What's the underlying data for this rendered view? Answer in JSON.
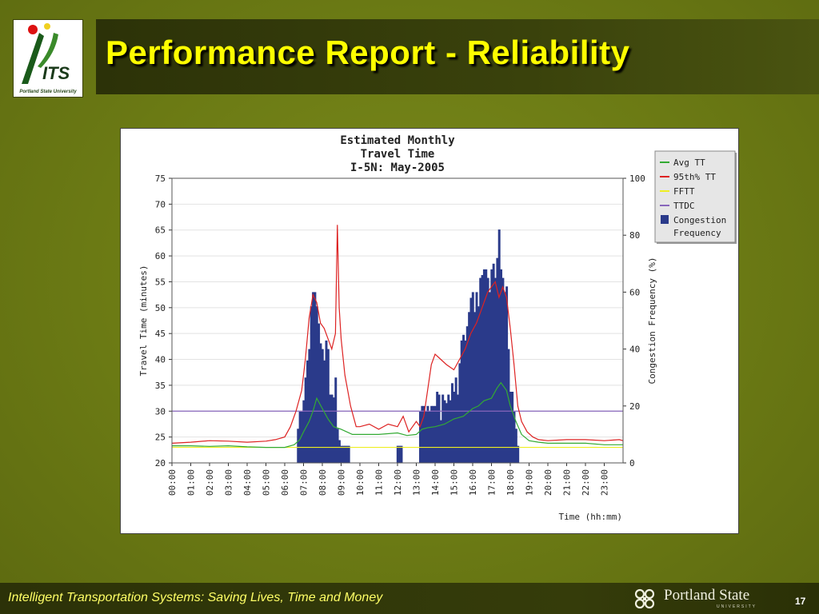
{
  "slide": {
    "title": "Performance Report - Reliability",
    "footer": "Intelligent Transportation Systems: Saving Lives, Time and Money",
    "page_number": "17",
    "logo_left": {
      "text": "ITS",
      "caption": "Portland State University"
    },
    "logo_right": {
      "name": "Portland State",
      "sub": "UNIVERSITY"
    }
  },
  "colors": {
    "background": "#6b7a14",
    "title": "#ffff00",
    "footer_text": "#ffff66",
    "avg_tt": "#33aa33",
    "p95_tt": "#dd2222",
    "fftt": "#eeee22",
    "ttdc": "#8866bb",
    "congestion": "#2a3a8a"
  },
  "chart_data": {
    "type": "bar+line",
    "title_lines": [
      "Estimated Monthly",
      "Travel Time",
      "I-5N: May-2005"
    ],
    "xlabel": "Time (hh:mm)",
    "ylabel": "Travel Time (minutes)",
    "y2label": "Congestion Frequency (%)",
    "ylim": [
      20,
      75
    ],
    "y2lim": [
      0,
      100
    ],
    "yticks": [
      "20",
      "25",
      "30",
      "35",
      "40",
      "45",
      "50",
      "55",
      "60",
      "65",
      "70",
      "75"
    ],
    "y2ticks": [
      "0",
      "20",
      "40",
      "60",
      "80",
      "100"
    ],
    "xticks": [
      "00:00",
      "01:00",
      "02:00",
      "03:00",
      "04:00",
      "05:00",
      "06:00",
      "07:00",
      "08:00",
      "09:00",
      "10:00",
      "11:00",
      "12:00",
      "13:00",
      "14:00",
      "15:00",
      "16:00",
      "17:00",
      "18:00",
      "19:00",
      "20:00",
      "21:00",
      "22:00",
      "23:00"
    ],
    "xlim": [
      0,
      24
    ],
    "grid": "horizontal",
    "legend_position": "top-right",
    "legend": [
      "Avg TT",
      "95th% TT",
      "FFTT",
      "TTDC",
      "Congestion",
      "Frequency"
    ],
    "fftt": 23,
    "ttdc": 30,
    "series": [
      {
        "name": "Avg TT",
        "x": [
          0,
          1,
          2,
          3,
          4,
          5,
          6,
          6.5,
          6.8,
          7,
          7.3,
          7.5,
          7.7,
          8,
          8.3,
          8.6,
          9,
          9.3,
          9.6,
          10,
          11,
          12,
          12.5,
          13,
          13.3,
          13.6,
          14,
          14.5,
          15,
          15.5,
          16,
          16.3,
          16.6,
          17,
          17.3,
          17.5,
          17.8,
          18,
          18.3,
          18.6,
          19,
          19.5,
          20,
          21,
          22,
          23,
          24
        ],
        "y": [
          23.3,
          23.3,
          23.2,
          23.3,
          23.1,
          23,
          23,
          23.5,
          24.5,
          26,
          28,
          30,
          32.5,
          30.5,
          28.5,
          27,
          26.5,
          26,
          25.5,
          25.5,
          25.5,
          25.8,
          25.3,
          25.5,
          26.5,
          26.8,
          27,
          27.5,
          28.5,
          29,
          30.5,
          31,
          32,
          32.5,
          34.5,
          35.5,
          34,
          31,
          28,
          25.5,
          24.3,
          24,
          23.8,
          23.8,
          23.8,
          23.5,
          23.5
        ]
      },
      {
        "name": "95th% TT",
        "x": [
          0,
          1,
          2,
          3,
          4,
          5,
          5.5,
          6,
          6.3,
          6.6,
          6.9,
          7.1,
          7.3,
          7.5,
          7.7,
          7.9,
          8.1,
          8.3,
          8.5,
          8.7,
          8.8,
          8.9,
          9,
          9.2,
          9.5,
          9.8,
          10,
          10.5,
          11,
          11.5,
          12,
          12.3,
          12.6,
          13,
          13.2,
          13.4,
          13.6,
          13.8,
          14,
          14.3,
          14.6,
          15,
          15.3,
          15.6,
          15.9,
          16.2,
          16.5,
          16.8,
          17,
          17.2,
          17.4,
          17.6,
          17.8,
          18,
          18.2,
          18.4,
          18.6,
          18.9,
          19.2,
          19.5,
          20,
          21,
          22,
          23,
          23.8,
          24
        ],
        "y": [
          23.8,
          24,
          24.3,
          24.2,
          24,
          24.2,
          24.5,
          25,
          27,
          30,
          34,
          40,
          48,
          52.5,
          51,
          47,
          46,
          44,
          42,
          45,
          66,
          50,
          44,
          37,
          31,
          27,
          27,
          27.5,
          26.5,
          27.5,
          27,
          29,
          26,
          28,
          27,
          29,
          34,
          39,
          41,
          40,
          39,
          38,
          40,
          42,
          45,
          47,
          50,
          53,
          54,
          55,
          52,
          54,
          52,
          46,
          39,
          31,
          28,
          26,
          25,
          24.5,
          24.3,
          24.5,
          24.5,
          24.3,
          24.5,
          24.3
        ]
      },
      {
        "name": "Congestion Frequency",
        "x": [
          6.7,
          6.8,
          6.9,
          7,
          7.1,
          7.2,
          7.3,
          7.4,
          7.5,
          7.6,
          7.7,
          7.8,
          7.9,
          8,
          8.1,
          8.2,
          8.3,
          8.4,
          8.5,
          8.6,
          8.7,
          8.8,
          8.9,
          9,
          9.1,
          9.2,
          9.3,
          9.4,
          12,
          12.1,
          12.2,
          13.2,
          13.3,
          13.4,
          13.5,
          13.6,
          13.7,
          13.8,
          13.9,
          14,
          14.1,
          14.2,
          14.3,
          14.4,
          14.5,
          14.6,
          14.7,
          14.8,
          14.9,
          15,
          15.1,
          15.2,
          15.3,
          15.4,
          15.5,
          15.6,
          15.7,
          15.8,
          15.9,
          16,
          16.1,
          16.2,
          16.3,
          16.4,
          16.5,
          16.6,
          16.7,
          16.8,
          16.9,
          17,
          17.1,
          17.2,
          17.3,
          17.4,
          17.5,
          17.6,
          17.7,
          17.8,
          17.9,
          18,
          18.1,
          18.2,
          18.3,
          18.4
        ],
        "y": [
          12,
          18,
          18,
          22,
          30,
          36,
          40,
          55,
          60,
          60,
          55,
          49,
          42,
          40,
          36,
          43,
          40,
          24,
          24,
          23,
          30,
          12,
          8,
          6,
          6,
          6,
          6,
          6,
          6,
          6,
          6,
          18,
          20,
          20,
          18,
          20,
          18,
          20,
          20,
          20,
          25,
          24,
          15,
          24,
          22,
          21,
          24,
          22,
          28,
          25,
          30,
          24,
          35,
          43,
          45,
          43,
          48,
          53,
          58,
          60,
          53,
          60,
          55,
          65,
          66,
          68,
          68,
          65,
          60,
          68,
          70,
          65,
          72,
          82,
          68,
          65,
          60,
          62,
          40,
          25,
          25,
          18,
          12,
          6
        ]
      }
    ]
  }
}
